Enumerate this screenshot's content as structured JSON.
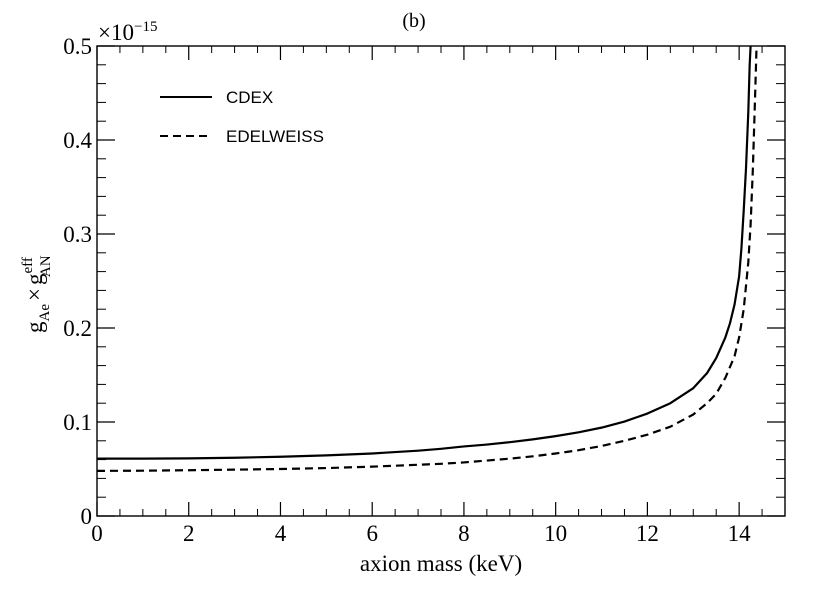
{
  "chart_data": {
    "type": "line",
    "panel_label": "(b)",
    "xlabel": "axion mass (keV)",
    "ylabel": {
      "base_g": "g",
      "sub_ae": "Ae",
      "times": "×",
      "base_g2": "g",
      "sup_eff": "eff",
      "sub_an": "AN"
    },
    "exponent_label": {
      "base": "×10",
      "exp": "−15"
    },
    "xlim": [
      0,
      15
    ],
    "ylim": [
      0,
      0.5
    ],
    "x_ticks": [
      0,
      2,
      4,
      6,
      8,
      10,
      12,
      14
    ],
    "x_tick_labels": [
      "0",
      "2",
      "4",
      "6",
      "8",
      "10",
      "12",
      "14"
    ],
    "y_ticks": [
      0,
      0.1,
      0.2,
      0.3,
      0.4,
      0.5
    ],
    "y_tick_labels": [
      "0",
      "0.1",
      "0.2",
      "0.3",
      "0.4",
      "0.5"
    ],
    "legend_position": "top-left",
    "series": [
      {
        "name": "CDEX",
        "style": "solid",
        "color": "#000000",
        "points": [
          [
            0,
            0.061
          ],
          [
            1,
            0.061
          ],
          [
            2,
            0.0613
          ],
          [
            3,
            0.062
          ],
          [
            4,
            0.063
          ],
          [
            5,
            0.0645
          ],
          [
            6,
            0.0665
          ],
          [
            6.5,
            0.068
          ],
          [
            7,
            0.0695
          ],
          [
            7.5,
            0.0715
          ],
          [
            8,
            0.074
          ],
          [
            8.5,
            0.076
          ],
          [
            9,
            0.0785
          ],
          [
            9.5,
            0.0815
          ],
          [
            10,
            0.085
          ],
          [
            10.5,
            0.089
          ],
          [
            11,
            0.094
          ],
          [
            11.5,
            0.1005
          ],
          [
            12,
            0.109
          ],
          [
            12.5,
            0.12
          ],
          [
            13,
            0.136
          ],
          [
            13.3,
            0.152
          ],
          [
            13.5,
            0.168
          ],
          [
            13.7,
            0.19
          ],
          [
            13.8,
            0.205
          ],
          [
            13.9,
            0.225
          ],
          [
            14.0,
            0.255
          ],
          [
            14.05,
            0.285
          ],
          [
            14.1,
            0.325
          ],
          [
            14.15,
            0.37
          ],
          [
            14.2,
            0.43
          ],
          [
            14.23,
            0.48
          ],
          [
            14.25,
            0.5
          ]
        ]
      },
      {
        "name": "EDELWEISS",
        "style": "dashed",
        "color": "#000000",
        "points": [
          [
            0,
            0.048
          ],
          [
            1,
            0.0482
          ],
          [
            2,
            0.0487
          ],
          [
            3,
            0.0493
          ],
          [
            4,
            0.05
          ],
          [
            5,
            0.051
          ],
          [
            6,
            0.0525
          ],
          [
            7,
            0.0545
          ],
          [
            7.5,
            0.0555
          ],
          [
            8,
            0.057
          ],
          [
            8.5,
            0.059
          ],
          [
            9,
            0.061
          ],
          [
            9.5,
            0.0635
          ],
          [
            10,
            0.0665
          ],
          [
            10.5,
            0.07
          ],
          [
            11,
            0.0745
          ],
          [
            11.5,
            0.08
          ],
          [
            12,
            0.0865
          ],
          [
            12.5,
            0.095
          ],
          [
            13,
            0.108
          ],
          [
            13.3,
            0.12
          ],
          [
            13.5,
            0.13
          ],
          [
            13.7,
            0.147
          ],
          [
            13.9,
            0.17
          ],
          [
            14.0,
            0.19
          ],
          [
            14.1,
            0.22
          ],
          [
            14.2,
            0.27
          ],
          [
            14.25,
            0.31
          ],
          [
            14.3,
            0.37
          ],
          [
            14.35,
            0.45
          ],
          [
            14.38,
            0.5
          ]
        ]
      }
    ]
  }
}
